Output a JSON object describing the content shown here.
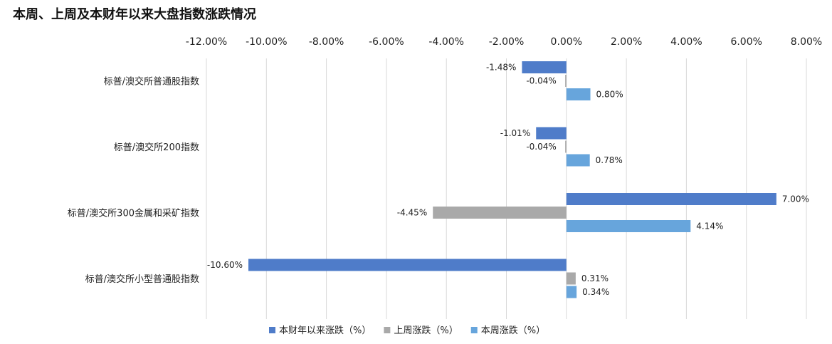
{
  "chart_data": {
    "type": "bar",
    "orientation": "horizontal",
    "title": "本周、上周及本财年以来大盘指数涨跌情况",
    "categories": [
      "标普/澳交所普通股指数",
      "标普/澳交所200指数",
      "标普/澳交所300金属和采矿指数",
      "标普/澳交所小型普通股指数"
    ],
    "xlim": [
      -12,
      8
    ],
    "xticks": [
      -12,
      -10,
      -8,
      -6,
      -4,
      -2,
      0,
      2,
      4,
      6,
      8
    ],
    "xtick_labels": [
      "-12.00%",
      "-10.00%",
      "-8.00%",
      "-6.00%",
      "-4.00%",
      "-2.00%",
      "0.00%",
      "2.00%",
      "4.00%",
      "6.00%",
      "8.00%"
    ],
    "x_axis_position": "top",
    "grid": true,
    "legend_position": "bottom",
    "series": [
      {
        "name": "本财年以来涨跌（%）",
        "color": "#4f7cc9",
        "values": [
          -1.48,
          -1.01,
          7.0,
          -10.6
        ],
        "labels": [
          "-1.48%",
          "-1.01%",
          "7.00%",
          "-10.60%"
        ]
      },
      {
        "name": "上周涨跌（%）",
        "color": "#a9a9a9",
        "values": [
          -0.04,
          -0.04,
          -4.45,
          0.31
        ],
        "labels": [
          "-0.04%",
          "-0.04%",
          "-4.45%",
          "0.31%"
        ]
      },
      {
        "name": "本周涨跌（%）",
        "color": "#67a5dc",
        "values": [
          0.8,
          0.78,
          4.14,
          0.34
        ],
        "labels": [
          "0.80%",
          "0.78%",
          "4.14%",
          "0.34%"
        ]
      }
    ]
  }
}
